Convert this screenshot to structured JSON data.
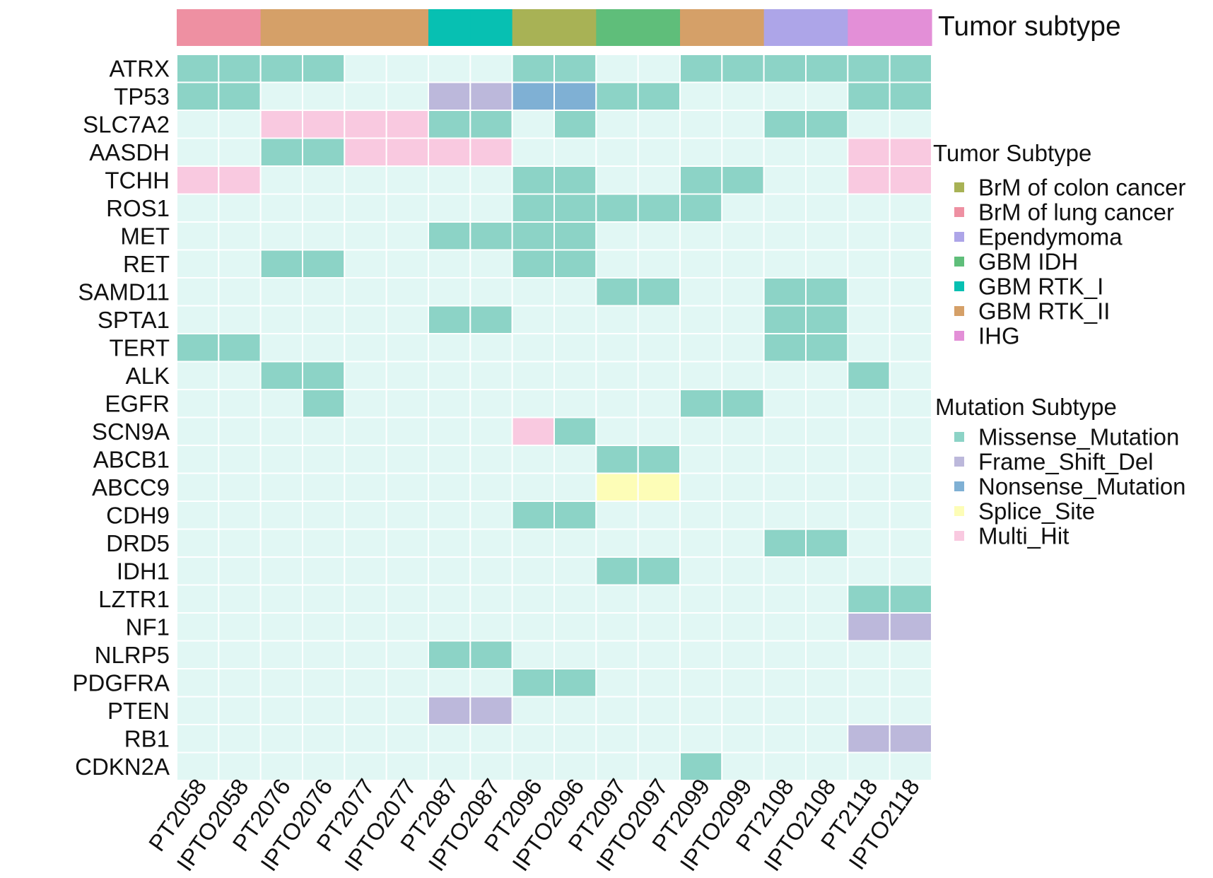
{
  "chart_data": {
    "type": "heatmap",
    "title": "",
    "top_annotation_label": "Tumor subtype",
    "samples": [
      "PT2058",
      "IPTO2058",
      "PT2076",
      "IPTO2076",
      "PT2077",
      "IPTO2077",
      "PT2087",
      "IPTO2087",
      "PT2096",
      "IPTO2096",
      "PT2097",
      "IPTO2097",
      "PT2099",
      "IPTO2099",
      "PT2108",
      "IPTO2108",
      "PT2118",
      "IPTO2118"
    ],
    "sample_subtype_codes": [
      "lung",
      "lung",
      "rtk2",
      "rtk2",
      "rtk2",
      "rtk2",
      "rtk1",
      "rtk1",
      "colon",
      "colon",
      "idh",
      "idh",
      "rtk2",
      "rtk2",
      "epen",
      "epen",
      "ihg",
      "ihg"
    ],
    "genes": [
      "ATRX",
      "TP53",
      "SLC7A2",
      "AASDH",
      "TCHH",
      "ROS1",
      "MET",
      "RET",
      "SAMD11",
      "SPTA1",
      "TERT",
      "ALK",
      "EGFR",
      "SCN9A",
      "ABCB1",
      "ABCC9",
      "CDH9",
      "DRD5",
      "IDH1",
      "LZTR1",
      "NF1",
      "NLRP5",
      "PDGFRA",
      "PTEN",
      "RB1",
      "CDKN2A"
    ],
    "mutation_codes": {
      "M": "Missense_Mutation",
      "F": "Frame_Shift_Del",
      "N": "Nonsense_Mutation",
      "S": "Splice_Site",
      "H": "Multi_Hit",
      ".": "none"
    },
    "matrix": [
      "MMMM....MM..MMMMMM",
      "MM....FFNNMM....MM",
      "..HHHHMM.M....MM..",
      "..MMHHHH........HH",
      "HH......MM..MM..HH",
      "........MMMMM.....",
      "......MMMM........",
      "..MM....MM........",
      "..........MM..MM..",
      "......MM......MM..",
      "MM............MM..",
      "..MM............M.",
      "...M........MM....",
      "........HM........",
      "..........MM......",
      "..........SS......",
      "........MM........",
      "..............MM..",
      "..........MM......",
      "................MM",
      "................FF",
      "......MM..........",
      "........MM........",
      "......FF..........",
      "................FF",
      "............M....."
    ],
    "tumor_legend": {
      "title": "Tumor Subtype",
      "items": [
        {
          "code": "colon",
          "label": "BrM of colon cancer",
          "color": "#a8b255"
        },
        {
          "code": "lung",
          "label": "BrM of lung cancer",
          "color": "#ee90a2"
        },
        {
          "code": "epen",
          "label": "Ependymoma",
          "color": "#ada5e8"
        },
        {
          "code": "idh",
          "label": "GBM IDH",
          "color": "#5fbe7a"
        },
        {
          "code": "rtk1",
          "label": "GBM RTK_I",
          "color": "#07c0b2"
        },
        {
          "code": "rtk2",
          "label": "GBM RTK_II",
          "color": "#d5a068"
        },
        {
          "code": "ihg",
          "label": "IHG",
          "color": "#e38fd7"
        }
      ]
    },
    "mutation_legend": {
      "title": "Mutation Subtype",
      "items": [
        {
          "code": "M",
          "label": "Missense_Mutation",
          "color": "#8cd3c6"
        },
        {
          "code": "F",
          "label": "Frame_Shift_Del",
          "color": "#bcb8db"
        },
        {
          "code": "N",
          "label": "Nonsense_Mutation",
          "color": "#7fb0d4"
        },
        {
          "code": "S",
          "label": "Splice_Site",
          "color": "#fdfdb7"
        },
        {
          "code": "H",
          "label": "Multi_Hit",
          "color": "#f9c9e0"
        }
      ]
    },
    "empty_cell_color": "#e1f7f4",
    "grid_line_color": "#ffffff"
  }
}
